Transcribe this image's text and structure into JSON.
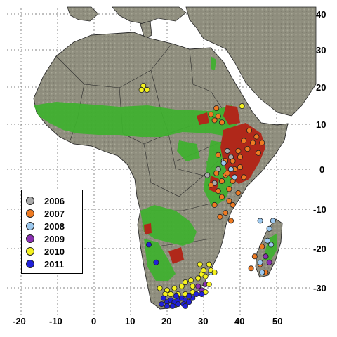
{
  "longitude_ticks": [
    "-20",
    "-10",
    "0",
    "10",
    "20",
    "30",
    "40",
    "50"
  ],
  "latitude_ticks": [
    "40",
    "30",
    "20",
    "10",
    "0",
    "-10",
    "-20",
    "-30"
  ],
  "legend": [
    {
      "year": "2006",
      "color": "#a9a9a9"
    },
    {
      "year": "2007",
      "color": "#ee7a22"
    },
    {
      "year": "2008",
      "color": "#9cc8ee"
    },
    {
      "year": "2009",
      "color": "#8a2fb2"
    },
    {
      "year": "2010",
      "color": "#f5f21e"
    },
    {
      "year": "2011",
      "color": "#2020d8"
    }
  ],
  "layer_colors": {
    "land": "#8f8e7e",
    "land_highlight": "#a8a796",
    "vegetation": "#3eb12e",
    "hotspot": "#b0281a",
    "sea": "#ffffff",
    "border": "#2a2a2a"
  },
  "marker_groups": [
    {
      "year": "2006",
      "points": [
        [
          -37.5,
          3
        ],
        [
          -35.5,
          2
        ],
        [
          -36.5,
          4.5
        ],
        [
          -34,
          0
        ],
        [
          -33,
          -3.5
        ],
        [
          -31,
          -1.5
        ]
      ]
    },
    {
      "year": "2007",
      "points": [
        [
          -33,
          12
        ],
        [
          -32,
          13.5
        ],
        [
          -33.5,
          15
        ],
        [
          -35,
          11.5
        ],
        [
          -34,
          13
        ],
        [
          -36,
          -1.5
        ],
        [
          -38,
          -3
        ],
        [
          -37,
          -5
        ],
        [
          -35,
          -7
        ],
        [
          -38,
          -9
        ],
        [
          -36,
          -11
        ],
        [
          -34,
          -5.5
        ],
        [
          -33,
          -9
        ],
        [
          -35,
          -3
        ],
        [
          -36.5,
          -1
        ],
        [
          -38.5,
          0
        ],
        [
          -40,
          0.5
        ],
        [
          -41,
          -2
        ],
        [
          -39.5,
          -6
        ],
        [
          -37.5,
          -13
        ],
        [
          -34.5,
          -12
        ],
        [
          -37,
          -8
        ],
        [
          -33.5,
          -1
        ],
        [
          -32,
          -4
        ],
        [
          -40,
          3
        ],
        [
          -42,
          5
        ],
        [
          -43.5,
          6.5
        ],
        [
          -44.5,
          8
        ],
        [
          -42.5,
          9.5
        ],
        [
          -41,
          7
        ],
        [
          -39.5,
          4.5
        ],
        [
          -45,
          4
        ],
        [
          -46,
          6.5
        ],
        [
          -38,
          2
        ],
        [
          -36,
          2
        ],
        [
          -34,
          3.5
        ],
        [
          -46,
          -19.5
        ],
        [
          -44,
          -22
        ],
        [
          -45.5,
          -24
        ],
        [
          -47,
          -26
        ],
        [
          -43,
          -25
        ]
      ]
    },
    {
      "year": "2008",
      "points": [
        [
          -37.5,
          0
        ],
        [
          -38.5,
          -2
        ],
        [
          -35.5,
          1.5
        ],
        [
          -45.5,
          -13
        ],
        [
          -49,
          -13
        ],
        [
          -48,
          -15
        ],
        [
          -47.5,
          -18
        ],
        [
          -48.5,
          -19
        ],
        [
          -47,
          -22
        ],
        [
          -45.5,
          -23.5
        ],
        [
          -46,
          -26
        ],
        [
          -31.5,
          -24
        ],
        [
          -32,
          -26
        ]
      ]
    },
    {
      "year": "2009",
      "points": [
        [
          -28.5,
          -29.5
        ],
        [
          -29.5,
          -30.5
        ],
        [
          -30.5,
          -29
        ],
        [
          -47,
          -22
        ],
        [
          -48,
          -23.5
        ]
      ]
    },
    {
      "year": "2010",
      "points": [
        [
          -13.5,
          20.5
        ],
        [
          -13,
          19.5
        ],
        [
          -14.5,
          19.5
        ],
        [
          -40.5,
          15.5
        ],
        [
          -18,
          -30
        ],
        [
          -20,
          -30.5
        ],
        [
          -22,
          -30
        ],
        [
          -24,
          -29.5
        ],
        [
          -25,
          -28.5
        ],
        [
          -26.5,
          -28
        ],
        [
          -27,
          -29.5
        ],
        [
          -28.5,
          -27.5
        ],
        [
          -29.5,
          -26.5
        ],
        [
          -30.5,
          -27
        ],
        [
          -30,
          -25.5
        ],
        [
          -29,
          -24
        ],
        [
          -31.5,
          -29
        ],
        [
          -30.5,
          -31
        ],
        [
          -27,
          -31
        ],
        [
          -25,
          -31.5
        ],
        [
          -23,
          -31.5
        ],
        [
          -21,
          -31.5
        ],
        [
          -19.5,
          -31.5
        ],
        [
          -31.5,
          -24
        ],
        [
          -32,
          -25.5
        ],
        [
          -33,
          -26
        ]
      ]
    },
    {
      "year": "2011",
      "points": [
        [
          -15,
          -19
        ],
        [
          -17,
          -23.5
        ],
        [
          -19,
          -32.5
        ],
        [
          -20,
          -33.5
        ],
        [
          -21,
          -33
        ],
        [
          -22,
          -33.5
        ],
        [
          -23,
          -33
        ],
        [
          -24,
          -32.5
        ],
        [
          -25,
          -33
        ],
        [
          -26,
          -33.5
        ],
        [
          -27,
          -32.5
        ],
        [
          -28,
          -31.5
        ],
        [
          -20,
          -34.5
        ],
        [
          -21.5,
          -34.5
        ],
        [
          -23,
          -34
        ],
        [
          -24.5,
          -34
        ],
        [
          -26,
          -32
        ],
        [
          -29.5,
          -31.5
        ],
        [
          -18.5,
          -34
        ],
        [
          -22.5,
          -32
        ],
        [
          -25,
          -34.5
        ]
      ]
    }
  ]
}
